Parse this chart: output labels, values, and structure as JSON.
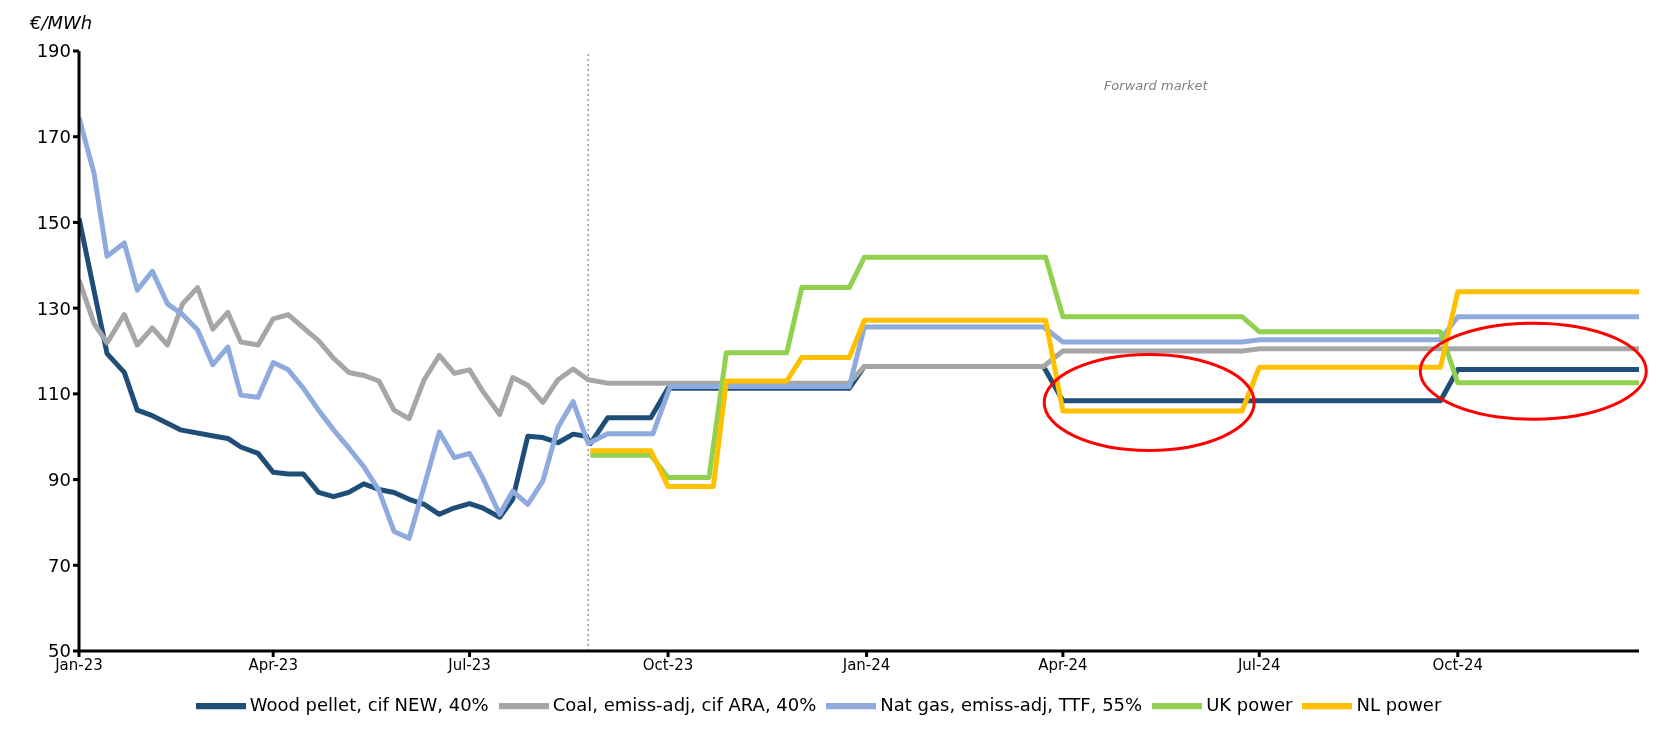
{
  "chart_data": {
    "type": "line",
    "ylabel": "€/MWh",
    "annotations": [
      "Forward market"
    ],
    "xlim": [
      "2023-01-01",
      "2024-12-24"
    ],
    "xticks": [
      {
        "value": "2023-01-01",
        "label": "Jan-23"
      },
      {
        "value": "2023-04-01",
        "label": "Apr-23"
      },
      {
        "value": "2023-07-01",
        "label": "Jul-23"
      },
      {
        "value": "2023-10-01",
        "label": "Oct-23"
      },
      {
        "value": "2024-01-01",
        "label": "Jan-24"
      },
      {
        "value": "2024-04-01",
        "label": "Apr-24"
      },
      {
        "value": "2024-07-01",
        "label": "Jul-24"
      },
      {
        "value": "2024-10-01",
        "label": "Oct-24"
      }
    ],
    "ylim": [
      50,
      190
    ],
    "yticks": [
      50,
      70,
      90,
      110,
      130,
      150,
      170,
      190
    ],
    "grid": false,
    "legend": "bottom",
    "marker": "none",
    "line_style": "solid",
    "ref_lines": [
      {
        "axis": "x",
        "value": "2023-08-25",
        "color": "#808080",
        "line_style": "dotted"
      }
    ],
    "series": [
      {
        "name": "Wood pellet, cif NEW, 40%",
        "color": "#1f4e79",
        "x": [
          "2023-01-01",
          "2023-01-14",
          "2023-01-22",
          "2023-01-28",
          "2023-02-04",
          "2023-02-17",
          "2023-03-05",
          "2023-03-11",
          "2023-03-17",
          "2023-03-25",
          "2023-04-01",
          "2023-04-08",
          "2023-04-15",
          "2023-04-22",
          "2023-04-29",
          "2023-05-06",
          "2023-05-13",
          "2023-05-20",
          "2023-05-27",
          "2023-06-03",
          "2023-06-10",
          "2023-06-17",
          "2023-06-23",
          "2023-07-01",
          "2023-07-07",
          "2023-07-15",
          "2023-07-21",
          "2023-07-28",
          "2023-08-04",
          "2023-08-11",
          "2023-08-18",
          "2023-08-24",
          "2023-08-26",
          "2023-09-03",
          "2023-09-23",
          "2023-10-01",
          "2023-12-24",
          "2023-12-31",
          "2024-03-23",
          "2024-04-01",
          "2024-09-23",
          "2024-10-01",
          "2024-12-24"
        ],
        "values": [
          151,
          119.4,
          115,
          106.2,
          104.9,
          101.6,
          100.1,
          99.6,
          97.6,
          96.1,
          91.7,
          91.3,
          91.3,
          87,
          86,
          87,
          89,
          87.7,
          87,
          85.4,
          84.2,
          81.9,
          83.2,
          84.4,
          83.4,
          81.2,
          85.4,
          100.1,
          99.8,
          98.6,
          100.6,
          100.1,
          98.4,
          104.4,
          104.4,
          111.3,
          111.3,
          116.4,
          116.4,
          108.4,
          108.4,
          115.7,
          115.7
        ]
      },
      {
        "name": "Coal, emiss-adj, cif ARA, 40%",
        "color": "#a6a6a6",
        "x": [
          "2023-01-01",
          "2023-01-08",
          "2023-01-14",
          "2023-01-22",
          "2023-01-28",
          "2023-02-04",
          "2023-02-11",
          "2023-02-18",
          "2023-02-25",
          "2023-03-04",
          "2023-03-11",
          "2023-03-17",
          "2023-03-25",
          "2023-04-01",
          "2023-04-08",
          "2023-04-15",
          "2023-04-22",
          "2023-04-29",
          "2023-05-06",
          "2023-05-13",
          "2023-05-20",
          "2023-05-27",
          "2023-06-03",
          "2023-06-10",
          "2023-06-17",
          "2023-06-24",
          "2023-07-01",
          "2023-07-07",
          "2023-07-15",
          "2023-07-21",
          "2023-07-28",
          "2023-08-04",
          "2023-08-11",
          "2023-08-18",
          "2023-08-25",
          "2023-09-03",
          "2023-12-24",
          "2023-12-31",
          "2024-03-23",
          "2024-04-01",
          "2024-06-23",
          "2024-07-01",
          "2024-12-24"
        ],
        "values": [
          136.6,
          126.4,
          121.9,
          128.5,
          121.4,
          125.4,
          121.4,
          131,
          134.8,
          125.1,
          129,
          122.1,
          121.4,
          127.5,
          128.5,
          125.4,
          122.4,
          118.3,
          115,
          114.3,
          113,
          106.2,
          104.2,
          113.3,
          119,
          114.8,
          115.6,
          110.7,
          105.2,
          113.8,
          112,
          108,
          113.3,
          115.8,
          113.3,
          112.5,
          112.5,
          116.4,
          116.4,
          120,
          120,
          120.5,
          120.5
        ]
      },
      {
        "name": "Nat gas, emiss-adj, TTF, 55%",
        "color": "#8faadc",
        "x": [
          "2023-01-01",
          "2023-01-08",
          "2023-01-14",
          "2023-01-22",
          "2023-01-28",
          "2023-02-04",
          "2023-02-11",
          "2023-02-18",
          "2023-02-25",
          "2023-03-04",
          "2023-03-11",
          "2023-03-17",
          "2023-03-25",
          "2023-04-01",
          "2023-04-08",
          "2023-04-15",
          "2023-04-22",
          "2023-04-29",
          "2023-05-06",
          "2023-05-13",
          "2023-05-20",
          "2023-05-27",
          "2023-06-03",
          "2023-06-10",
          "2023-06-17",
          "2023-06-24",
          "2023-07-01",
          "2023-07-07",
          "2023-07-15",
          "2023-07-21",
          "2023-07-28",
          "2023-08-04",
          "2023-08-11",
          "2023-08-18",
          "2023-08-25",
          "2023-09-03",
          "2023-09-24",
          "2023-10-02",
          "2023-12-24",
          "2023-12-31",
          "2024-03-23",
          "2024-04-01",
          "2024-06-23",
          "2024-07-01",
          "2024-09-23",
          "2024-10-01",
          "2024-12-24"
        ],
        "values": [
          174.5,
          161.4,
          142.1,
          145.2,
          134.2,
          138.6,
          131,
          128.5,
          124.9,
          116.8,
          120.9,
          109.7,
          109.2,
          117.3,
          115.6,
          111.3,
          106.2,
          101.6,
          97.4,
          93,
          87.5,
          77.9,
          76.3,
          88.5,
          101.1,
          95.1,
          96.1,
          90.5,
          81.9,
          87.3,
          84.2,
          89.7,
          102.2,
          108.2,
          98.4,
          100.7,
          100.7,
          111.7,
          111.7,
          125.6,
          125.6,
          122.1,
          122.1,
          122.6,
          122.6,
          128,
          128
        ]
      },
      {
        "name": "UK power",
        "color": "#92d050",
        "x": [
          "2023-08-26",
          "2023-09-23",
          "2023-10-01",
          "2023-10-20",
          "2023-10-28",
          "2023-11-25",
          "2023-12-02",
          "2023-12-24",
          "2023-12-31",
          "2024-03-24",
          "2024-04-01",
          "2024-06-23",
          "2024-07-01",
          "2024-09-23",
          "2024-10-01",
          "2024-12-24"
        ],
        "values": [
          95.7,
          95.7,
          90.5,
          90.5,
          119.6,
          119.6,
          134.8,
          134.8,
          141.9,
          141.9,
          128,
          128,
          124.5,
          124.5,
          112.6,
          112.6
        ]
      },
      {
        "name": "NL power",
        "color": "#ffc000",
        "x": [
          "2023-08-26",
          "2023-09-23",
          "2023-10-01",
          "2023-10-22",
          "2023-10-28",
          "2023-11-25",
          "2023-12-02",
          "2023-12-24",
          "2023-12-31",
          "2024-03-24",
          "2024-04-01",
          "2024-06-23",
          "2024-07-01",
          "2024-09-23",
          "2024-10-01",
          "2024-12-24"
        ],
        "values": [
          96.7,
          96.7,
          88.4,
          88.4,
          113,
          113,
          118.5,
          118.5,
          127.2,
          127.2,
          106,
          106,
          116.2,
          116.2,
          133.8,
          133.8
        ]
      }
    ]
  }
}
